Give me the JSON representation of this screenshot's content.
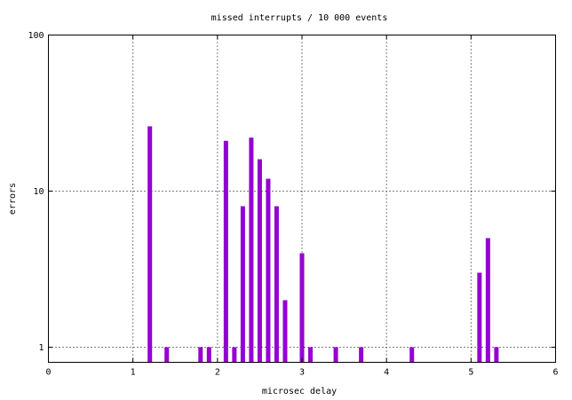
{
  "chart_data": {
    "type": "bar",
    "title": "missed interrupts / 10 000 events",
    "xlabel": "microsec delay",
    "ylabel": "errors",
    "xlim": [
      0,
      6
    ],
    "ylim": [
      0.8,
      100
    ],
    "yscale": "log",
    "grid": true,
    "x_ticks": [
      0,
      1,
      2,
      3,
      4,
      5,
      6
    ],
    "x_tick_labels": [
      "0",
      "1",
      "2",
      "3",
      "4",
      "5",
      "6"
    ],
    "y_ticks": [
      1,
      10,
      100
    ],
    "y_tick_labels": [
      "1",
      "10",
      "100"
    ],
    "bar_color": "#9400d3",
    "series": [
      {
        "x": [
          1.2,
          1.4,
          1.8,
          1.9,
          2.1,
          2.2,
          2.3,
          2.4,
          2.5,
          2.6,
          2.7,
          2.8,
          3.0,
          3.1,
          3.4,
          3.7,
          4.3,
          5.1,
          5.2,
          5.3
        ],
        "values": [
          26,
          1,
          1,
          1,
          21,
          1,
          8,
          22,
          16,
          12,
          8,
          2,
          4,
          1,
          1,
          1,
          1,
          3,
          5,
          1
        ]
      }
    ]
  }
}
